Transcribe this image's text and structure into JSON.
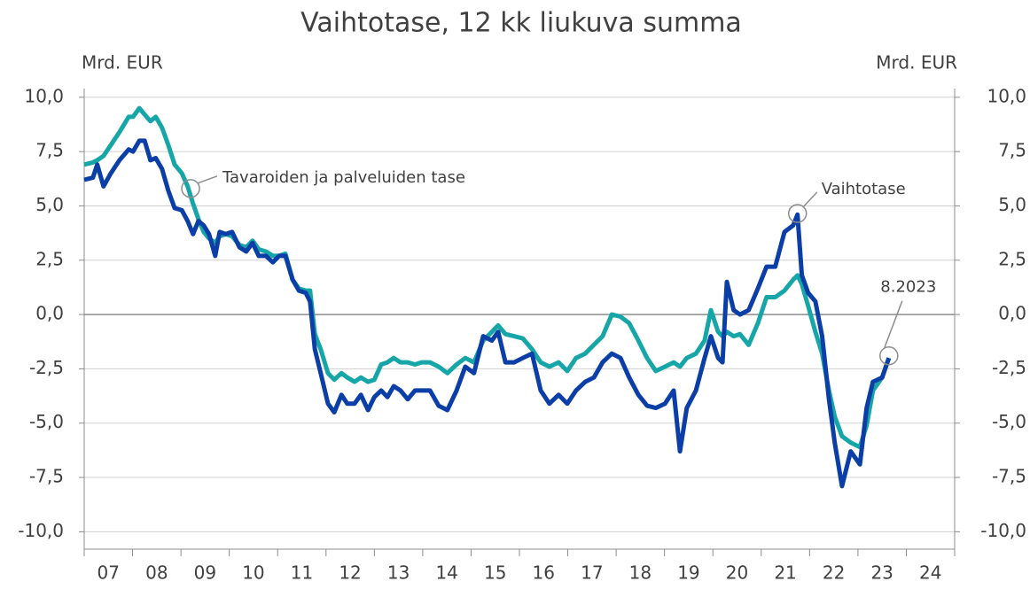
{
  "chart_data": {
    "type": "line",
    "title": "Vaihtotase, 12 kk liukuva summa",
    "y_label": "Mrd. EUR",
    "y2_label": "Mrd. EUR",
    "xlim": [
      7,
      25
    ],
    "xticks": [
      {
        "value": 7,
        "label": "07"
      },
      {
        "value": 8,
        "label": "08"
      },
      {
        "value": 9,
        "label": "09"
      },
      {
        "value": 10,
        "label": "10"
      },
      {
        "value": 11,
        "label": "11"
      },
      {
        "value": 12,
        "label": "12"
      },
      {
        "value": 13,
        "label": "13"
      },
      {
        "value": 14,
        "label": "14"
      },
      {
        "value": 15,
        "label": "15"
      },
      {
        "value": 16,
        "label": "16"
      },
      {
        "value": 17,
        "label": "17"
      },
      {
        "value": 18,
        "label": "18"
      },
      {
        "value": 19,
        "label": "19"
      },
      {
        "value": 20,
        "label": "20"
      },
      {
        "value": 21,
        "label": "21"
      },
      {
        "value": 22,
        "label": "22"
      },
      {
        "value": 23,
        "label": "23"
      },
      {
        "value": 24,
        "label": "24"
      }
    ],
    "ylim": [
      -10.8,
      10.4
    ],
    "yticks": [
      {
        "value": 10,
        "label": "10,0"
      },
      {
        "value": 7.5,
        "label": "7,5"
      },
      {
        "value": 5,
        "label": "5,0"
      },
      {
        "value": 2.5,
        "label": "2,5"
      },
      {
        "value": 0,
        "label": "0,0"
      },
      {
        "value": -2.5,
        "label": "-2,5"
      },
      {
        "value": -5,
        "label": "-5,0"
      },
      {
        "value": -7.5,
        "label": "-7,5"
      },
      {
        "value": -10,
        "label": "-10,0"
      }
    ],
    "y2lim": [
      -10.8,
      10.4
    ],
    "y2ticks": [
      {
        "value": 10,
        "label": "10,0"
      },
      {
        "value": 7.5,
        "label": "7,5"
      },
      {
        "value": 5,
        "label": "5,0"
      },
      {
        "value": 2.5,
        "label": "2,5"
      },
      {
        "value": 0,
        "label": "0,0"
      },
      {
        "value": -2.5,
        "label": "-2,5"
      },
      {
        "value": -5,
        "label": "-5,0"
      },
      {
        "value": -7.5,
        "label": "-7,5"
      },
      {
        "value": -10,
        "label": "-10,0"
      }
    ],
    "grid": true,
    "x": [
      7.0,
      7.18,
      7.27,
      7.4,
      7.55,
      7.73,
      7.92,
      8.01,
      8.14,
      8.25,
      8.37,
      8.48,
      8.61,
      8.74,
      8.87,
      9.02,
      9.14,
      9.25,
      9.36,
      9.47,
      9.58,
      9.71,
      9.8,
      9.93,
      10.06,
      10.21,
      10.35,
      10.48,
      10.61,
      10.76,
      10.9,
      11.03,
      11.16,
      11.31,
      11.44,
      11.58,
      11.67,
      11.77,
      11.89,
      12.04,
      12.17,
      12.32,
      12.44,
      12.59,
      12.72,
      12.87,
      13.0,
      13.14,
      13.27,
      13.4,
      13.54,
      13.69,
      13.84,
      13.98,
      14.15,
      14.33,
      14.51,
      14.7,
      14.88,
      15.06,
      15.25,
      15.43,
      15.56,
      15.71,
      15.89,
      16.07,
      16.26,
      16.44,
      16.62,
      16.81,
      16.99,
      17.17,
      17.36,
      17.54,
      17.72,
      17.91,
      18.09,
      18.27,
      18.46,
      18.64,
      18.82,
      19.01,
      19.19,
      19.32,
      19.46,
      19.65,
      19.83,
      19.96,
      20.11,
      20.2,
      20.29,
      20.43,
      20.56,
      20.74,
      20.93,
      21.11,
      21.29,
      21.48,
      21.66,
      21.75,
      21.84,
      21.97,
      22.12,
      22.26,
      22.4,
      22.52,
      22.67,
      22.85,
      23.04,
      23.18,
      23.31,
      23.5,
      23.64
    ],
    "series": [
      {
        "name": "Tavaroiden ja palveluiden tase",
        "color": "#17a6a8",
        "marker": {
          "x": 9.2,
          "y": 5.8
        },
        "values": [
          6.9,
          7.0,
          7.1,
          7.3,
          7.8,
          8.4,
          9.1,
          9.1,
          9.5,
          9.2,
          8.9,
          9.1,
          8.6,
          7.8,
          6.9,
          6.5,
          5.9,
          5.1,
          4.4,
          3.8,
          3.5,
          3.3,
          3.6,
          3.7,
          3.6,
          3.2,
          3.1,
          3.4,
          3.0,
          2.9,
          2.7,
          2.7,
          2.8,
          1.6,
          1.2,
          1.1,
          1.1,
          -0.9,
          -1.6,
          -2.7,
          -3.0,
          -2.7,
          -2.9,
          -3.1,
          -2.9,
          -3.1,
          -3.0,
          -2.3,
          -2.2,
          -2.0,
          -2.2,
          -2.2,
          -2.3,
          -2.2,
          -2.2,
          -2.4,
          -2.7,
          -2.3,
          -2.0,
          -2.2,
          -1.2,
          -0.8,
          -0.5,
          -0.9,
          -1.0,
          -1.1,
          -1.6,
          -2.2,
          -2.4,
          -2.2,
          -2.6,
          -2.0,
          -1.8,
          -1.4,
          -1.0,
          0.0,
          -0.1,
          -0.4,
          -1.2,
          -2.0,
          -2.6,
          -2.4,
          -2.2,
          -2.4,
          -2.0,
          -1.8,
          -1.2,
          0.2,
          -0.8,
          -1.0,
          -0.8,
          -1.0,
          -0.9,
          -1.4,
          -0.4,
          0.8,
          0.8,
          1.1,
          1.6,
          1.8,
          1.4,
          0.4,
          -0.8,
          -1.8,
          -3.5,
          -4.7,
          -5.6,
          -5.9,
          -6.1,
          -5.1,
          -3.5,
          -2.9,
          -2.0
        ]
      },
      {
        "name": "Vaihtotase",
        "color": "#0b3ea6",
        "marker": {
          "x": 21.75,
          "y": 4.65
        },
        "values": [
          6.2,
          6.3,
          6.9,
          5.9,
          6.5,
          7.1,
          7.6,
          7.5,
          8.0,
          8.0,
          7.1,
          7.2,
          6.7,
          5.7,
          4.9,
          4.8,
          4.3,
          3.7,
          4.3,
          4.1,
          3.7,
          2.7,
          3.8,
          3.7,
          3.8,
          3.1,
          2.9,
          3.3,
          2.7,
          2.7,
          2.4,
          2.7,
          2.7,
          1.6,
          1.1,
          1.0,
          0.6,
          -1.6,
          -2.7,
          -4.1,
          -4.5,
          -3.7,
          -4.1,
          -4.1,
          -3.7,
          -4.4,
          -3.8,
          -3.5,
          -3.8,
          -3.3,
          -3.5,
          -3.9,
          -3.5,
          -3.5,
          -3.5,
          -4.2,
          -4.4,
          -3.5,
          -2.4,
          -2.7,
          -1.0,
          -1.2,
          -0.8,
          -2.2,
          -2.2,
          -2.0,
          -1.8,
          -3.5,
          -4.1,
          -3.7,
          -4.1,
          -3.5,
          -3.1,
          -2.9,
          -2.2,
          -1.8,
          -2.0,
          -2.9,
          -3.7,
          -4.2,
          -4.3,
          -4.1,
          -3.5,
          -6.3,
          -4.3,
          -3.5,
          -2.0,
          -1.0,
          -2.0,
          -2.2,
          1.5,
          0.2,
          0.0,
          0.2,
          1.2,
          2.2,
          2.2,
          3.8,
          4.1,
          4.6,
          1.8,
          1.0,
          0.6,
          -1.0,
          -3.9,
          -5.9,
          -7.9,
          -6.3,
          -6.9,
          -4.3,
          -3.1,
          -2.9,
          -2.0
        ]
      }
    ],
    "annotations": [
      {
        "text": "8.2023",
        "x": 23.64,
        "y": -1.9
      }
    ]
  }
}
